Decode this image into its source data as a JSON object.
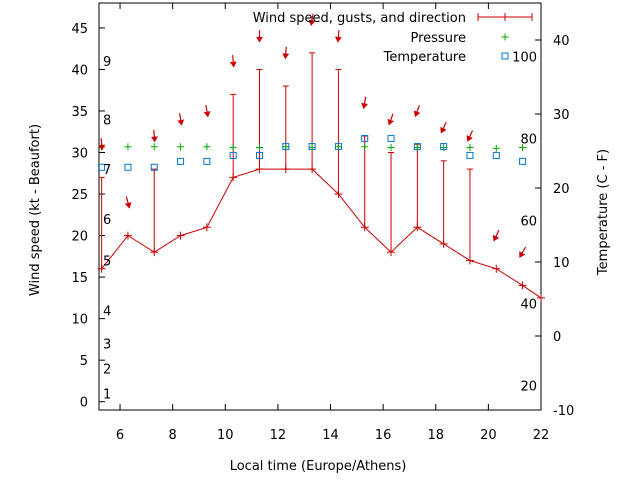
{
  "chart_data": {
    "type": "line",
    "xlabel": "Local time (Europe/Athens)",
    "ylabel": "Wind speed (kt - Beaufort)",
    "y2label": "Temperature (C - F)",
    "xlim": [
      5.2,
      22
    ],
    "ylim": [
      -1,
      48
    ],
    "y2lim": [
      -10,
      45
    ],
    "xticks": [
      6,
      8,
      10,
      12,
      14,
      16,
      18,
      20,
      22
    ],
    "yticks": [
      0,
      5,
      10,
      15,
      20,
      25,
      30,
      35,
      40,
      45
    ],
    "y2ticks": [
      -10,
      0,
      10,
      20,
      30,
      40
    ],
    "beaufort_labels": [
      {
        "label": "1",
        "kt": 1
      },
      {
        "label": "2",
        "kt": 4
      },
      {
        "label": "3",
        "kt": 7
      },
      {
        "label": "4",
        "kt": 11
      },
      {
        "label": "5",
        "kt": 17
      },
      {
        "label": "6",
        "kt": 22
      },
      {
        "label": "7",
        "kt": 28
      },
      {
        "label": "8",
        "kt": 34
      },
      {
        "label": "9",
        "kt": 41
      }
    ],
    "fahrenheit_labels": [
      {
        "label": "20",
        "c": -6.7
      },
      {
        "label": "40",
        "c": 4.4
      },
      {
        "label": "60",
        "c": 15.6
      },
      {
        "label": "80",
        "c": 26.7
      },
      {
        "label": "100",
        "c": 37.8
      }
    ],
    "legend": {
      "placement": "top-right",
      "entries": [
        {
          "label": "Wind speed, gusts, and direction",
          "marker": "errorline",
          "color": "#cc0000"
        },
        {
          "label": "Pressure",
          "marker": "plus",
          "color": "#00aa00"
        },
        {
          "label": "Temperature",
          "marker": "square",
          "color": "#0077cc"
        }
      ]
    },
    "series": [
      {
        "name": "Wind speed, gusts, and direction",
        "color": "#cc0000",
        "x": [
          5.3,
          6.3,
          7.3,
          8.3,
          9.3,
          10.3,
          11.3,
          12.3,
          13.3,
          14.3,
          15.3,
          16.3,
          17.3,
          18.3,
          19.3,
          20.3,
          21.3,
          22
        ],
        "y": [
          16,
          20,
          18,
          20,
          21,
          27,
          28,
          28,
          28,
          25,
          21,
          18,
          21,
          19,
          17,
          16,
          14,
          12.5
        ],
        "gusts": [
          27,
          null,
          28,
          null,
          null,
          37,
          40,
          38,
          42,
          40,
          32,
          30,
          31,
          29,
          28,
          null,
          null,
          null
        ]
      },
      {
        "name": "Pressure",
        "color": "#00aa00",
        "x": [
          5.3,
          6.3,
          7.3,
          8.3,
          9.3,
          10.3,
          11.3,
          12.3,
          13.3,
          14.3,
          15.3,
          16.3,
          17.3,
          18.3,
          19.3,
          20.3,
          21.3
        ],
        "y": [
          30.7,
          30.7,
          30.7,
          30.7,
          30.7,
          30.6,
          30.6,
          30.7,
          30.6,
          30.7,
          30.7,
          30.6,
          30.6,
          30.6,
          30.6,
          30.5,
          30.6
        ]
      },
      {
        "name": "Temperature",
        "color": "#0077cc",
        "x": [
          5.3,
          6.3,
          7.3,
          8.3,
          9.3,
          10.3,
          11.3,
          12.3,
          13.3,
          14.3,
          15.3,
          16.3,
          17.3,
          18.3,
          19.3,
          20.3,
          21.3
        ],
        "y": [
          22.8,
          22.8,
          22.8,
          23.6,
          23.6,
          24.4,
          24.4,
          25.6,
          25.6,
          25.6,
          26.7,
          26.7,
          25.6,
          25.6,
          24.4,
          24.4,
          23.6
        ]
      }
    ],
    "wind_direction_arrows": [
      {
        "x": 5.3,
        "kt": 31,
        "dir_deg": 355
      },
      {
        "x": 6.3,
        "kt": 24,
        "dir_deg": 345
      },
      {
        "x": 7.3,
        "kt": 32,
        "dir_deg": 355
      },
      {
        "x": 8.3,
        "kt": 34,
        "dir_deg": 350
      },
      {
        "x": 9.3,
        "kt": 35,
        "dir_deg": 350
      },
      {
        "x": 10.3,
        "kt": 41,
        "dir_deg": 355
      },
      {
        "x": 11.3,
        "kt": 44,
        "dir_deg": 0
      },
      {
        "x": 12.3,
        "kt": 42,
        "dir_deg": 5
      },
      {
        "x": 13.3,
        "kt": 46,
        "dir_deg": 10
      },
      {
        "x": 14.3,
        "kt": 44,
        "dir_deg": 5
      },
      {
        "x": 15.3,
        "kt": 36,
        "dir_deg": 10
      },
      {
        "x": 16.3,
        "kt": 34,
        "dir_deg": 20
      },
      {
        "x": 17.3,
        "kt": 35,
        "dir_deg": 20
      },
      {
        "x": 18.3,
        "kt": 33,
        "dir_deg": 25
      },
      {
        "x": 19.3,
        "kt": 32,
        "dir_deg": 25
      },
      {
        "x": 20.3,
        "kt": 20,
        "dir_deg": 25
      },
      {
        "x": 21.3,
        "kt": 18,
        "dir_deg": 30
      }
    ]
  }
}
